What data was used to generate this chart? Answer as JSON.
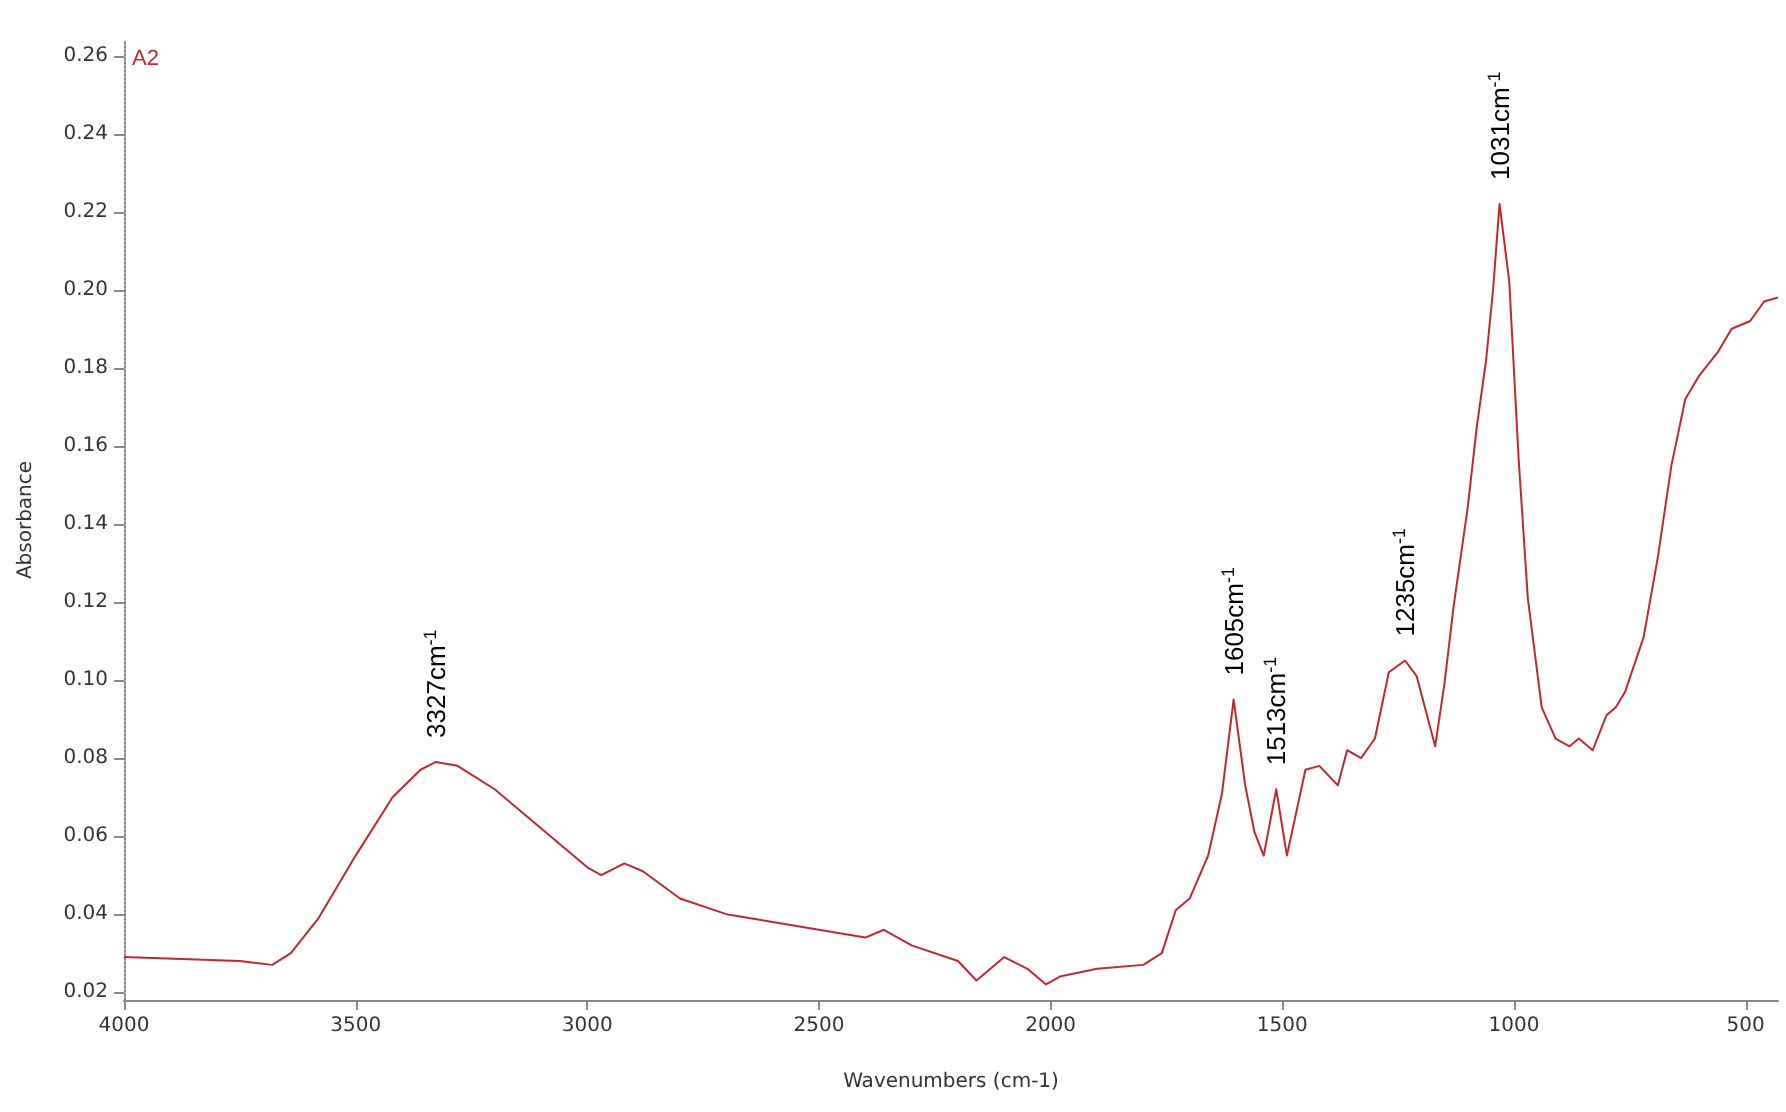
{
  "chart_data": {
    "type": "line",
    "xlabel": "Wavenumbers (cm-1)",
    "ylabel": "Absorbance",
    "xlim": [
      4000,
      430
    ],
    "xticks": [
      4000,
      3500,
      3000,
      2500,
      2000,
      1500,
      1000,
      500
    ],
    "ylim": [
      0.018,
      0.264
    ],
    "yticks": [
      0.02,
      0.04,
      0.06,
      0.08,
      {
        "value": 0.1,
        "label": "0.10"
      },
      0.12,
      0.14,
      0.16,
      0.18,
      {
        "value": 0.2,
        "label": "0.20"
      },
      0.22,
      0.24,
      0.26
    ],
    "grid": false,
    "marker": "none",
    "line_style": "solid",
    "annotations": [
      "A2",
      {
        "text": "3327cm$^{-1}$",
        "x": 3327,
        "y": 0.079
      },
      {
        "text": "1605cm$^{-1}$",
        "x": 1605,
        "y": 0.095
      },
      {
        "text": "1513cm$^{-1}$",
        "x": 1513,
        "y": 0.072
      },
      {
        "text": "1235cm$^{-1}$",
        "x": 1235,
        "y": 0.105
      },
      {
        "text": "1031cm$^{-1}$",
        "x": 1031,
        "y": 0.222
      }
    ],
    "series": [
      {
        "color": "#c0282d",
        "x": [
          4000,
          3750,
          3680,
          3640,
          3580,
          3500,
          3420,
          3360,
          3327,
          3280,
          3200,
          3100,
          3000,
          2970,
          2920,
          2880,
          2800,
          2700,
          2600,
          2500,
          2400,
          2360,
          2300,
          2200,
          2160,
          2100,
          2050,
          2010,
          1980,
          1900,
          1800,
          1760,
          1730,
          1700,
          1660,
          1630,
          1605,
          1580,
          1560,
          1540,
          1513,
          1490,
          1450,
          1420,
          1380,
          1360,
          1330,
          1300,
          1270,
          1235,
          1210,
          1170,
          1150,
          1130,
          1100,
          1080,
          1060,
          1045,
          1031,
          1010,
          990,
          970,
          940,
          910,
          880,
          860,
          830,
          800,
          780,
          760,
          720,
          690,
          660,
          630,
          600,
          560,
          530,
          490,
          460,
          430
        ],
        "values": [
          0.029,
          0.028,
          0.027,
          0.03,
          0.039,
          0.055,
          0.07,
          0.077,
          0.079,
          0.078,
          0.072,
          0.062,
          0.052,
          0.05,
          0.053,
          0.051,
          0.044,
          0.04,
          0.038,
          0.036,
          0.034,
          0.036,
          0.032,
          0.028,
          0.023,
          0.029,
          0.026,
          0.022,
          0.024,
          0.026,
          0.027,
          0.03,
          0.041,
          0.044,
          0.055,
          0.071,
          0.095,
          0.073,
          0.061,
          0.055,
          0.072,
          0.055,
          0.077,
          0.078,
          0.073,
          0.082,
          0.08,
          0.085,
          0.102,
          0.105,
          0.101,
          0.083,
          0.099,
          0.119,
          0.144,
          0.165,
          0.182,
          0.2,
          0.222,
          0.202,
          0.157,
          0.121,
          0.093,
          0.085,
          0.083,
          0.085,
          0.082,
          0.091,
          0.093,
          0.097,
          0.111,
          0.131,
          0.155,
          0.172,
          0.178,
          0.184,
          0.19,
          0.192,
          0.197,
          0.198
        ]
      }
    ]
  }
}
